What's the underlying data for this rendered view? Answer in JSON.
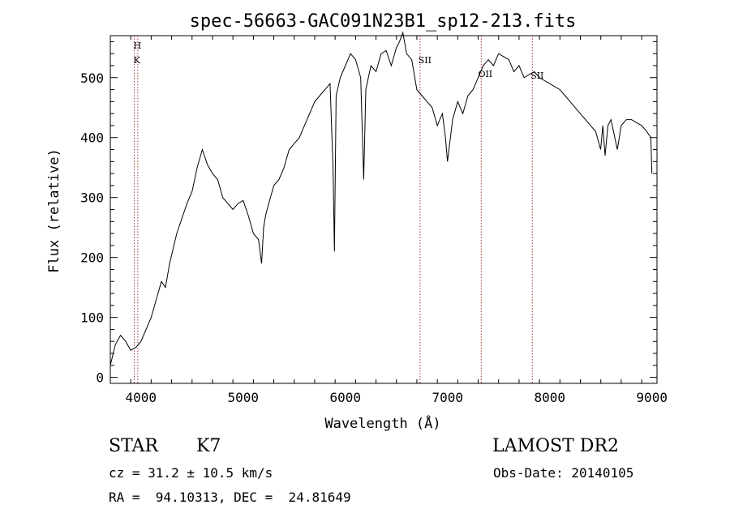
{
  "chart_data": {
    "type": "line",
    "title": "spec-56663-GAC091N23B1_sp12-213.fits",
    "xlabel": "Wavelength (Å)",
    "ylabel": "Flux (relative)",
    "xlim": [
      3700,
      9050
    ],
    "ylim": [
      -10,
      570
    ],
    "xticks": [
      4000,
      5000,
      6000,
      7000,
      8000,
      9000
    ],
    "yticks": [
      0,
      100,
      200,
      300,
      400,
      500
    ],
    "grid": false,
    "series": [
      {
        "x": [
          3700,
          3750,
          3800,
          3850,
          3900,
          3950,
          4000,
          4050,
          4100,
          4150,
          4200,
          4240,
          4280,
          4350,
          4400,
          4450,
          4500,
          4550,
          4600,
          4650,
          4700,
          4750,
          4800,
          4850,
          4900,
          4950,
          5000,
          5050,
          5100,
          5150,
          5180,
          5200,
          5220,
          5250,
          5300,
          5350,
          5400,
          5450,
          5500,
          5550,
          5600,
          5650,
          5700,
          5750,
          5800,
          5850,
          5880,
          5893,
          5910,
          5950,
          6000,
          6050,
          6100,
          6150,
          6180,
          6200,
          6250,
          6300,
          6350,
          6400,
          6450,
          6500,
          6530,
          6563,
          6600,
          6650,
          6700,
          6750,
          6800,
          6850,
          6900,
          6950,
          6980,
          7000,
          7050,
          7100,
          7150,
          7200,
          7250,
          7300,
          7350,
          7400,
          7450,
          7500,
          7550,
          7600,
          7650,
          7700,
          7750,
          7800,
          7850,
          7900,
          7950,
          8000,
          8050,
          8100,
          8150,
          8200,
          8250,
          8300,
          8350,
          8400,
          8450,
          8498,
          8520,
          8542,
          8570,
          8600,
          8662,
          8700,
          8750,
          8800,
          8850,
          8900,
          8950,
          8990,
          9000
        ],
        "y": [
          20,
          55,
          70,
          60,
          45,
          50,
          60,
          80,
          100,
          130,
          160,
          150,
          190,
          240,
          265,
          290,
          310,
          350,
          380,
          355,
          340,
          330,
          300,
          290,
          280,
          290,
          295,
          270,
          240,
          230,
          190,
          250,
          270,
          290,
          320,
          330,
          350,
          380,
          390,
          400,
          420,
          440,
          460,
          470,
          480,
          490,
          350,
          210,
          470,
          500,
          520,
          540,
          530,
          500,
          330,
          480,
          520,
          510,
          540,
          545,
          520,
          550,
          560,
          575,
          540,
          530,
          480,
          470,
          460,
          450,
          420,
          440,
          400,
          360,
          430,
          460,
          440,
          470,
          480,
          500,
          520,
          530,
          520,
          540,
          535,
          530,
          510,
          520,
          500,
          505,
          510,
          500,
          495,
          490,
          485,
          480,
          470,
          460,
          450,
          440,
          430,
          420,
          410,
          380,
          420,
          370,
          420,
          430,
          380,
          420,
          430,
          430,
          425,
          420,
          410,
          400,
          340
        ]
      }
    ],
    "annotations": [
      "H",
      "K",
      "SII",
      "OII",
      "SII"
    ],
    "annotation_lines_x": [
      3934,
      3969,
      6731,
      7330,
      7830
    ]
  },
  "footer": {
    "object_type": "STAR",
    "subclass": "K7",
    "survey": "LAMOST DR2",
    "redshift": "cz = 31.2 ± 10.5 km/s",
    "obs_date": "Obs-Date: 20140105",
    "coords": "RA =  94.10313, DEC =  24.81649"
  }
}
